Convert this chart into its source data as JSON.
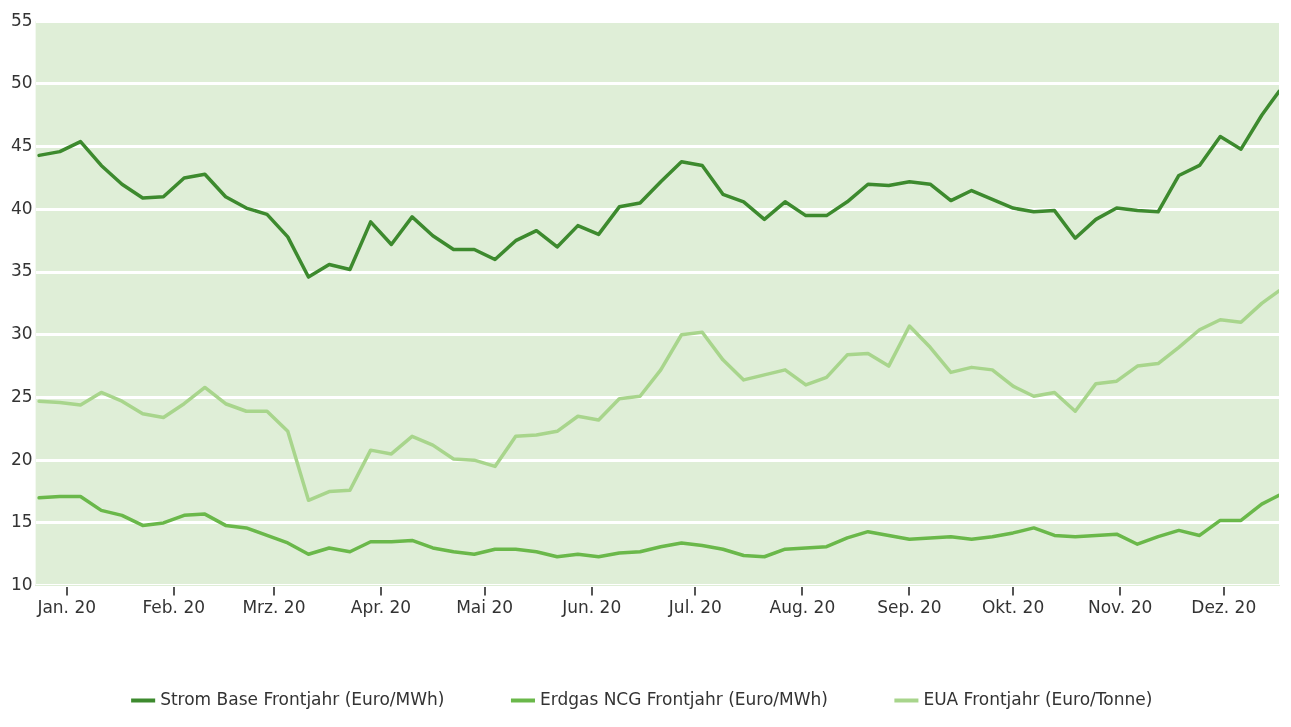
{
  "chart_data": {
    "type": "line",
    "x": [
      "2019-12-24",
      "2019-12-30",
      "2020-01-05",
      "2020-01-11",
      "2020-01-17",
      "2020-01-23",
      "2020-01-29",
      "2020-02-04",
      "2020-02-10",
      "2020-02-16",
      "2020-02-22",
      "2020-02-28",
      "2020-03-05",
      "2020-03-11",
      "2020-03-17",
      "2020-03-23",
      "2020-03-29",
      "2020-04-04",
      "2020-04-10",
      "2020-04-16",
      "2020-04-22",
      "2020-04-28",
      "2020-05-04",
      "2020-05-10",
      "2020-05-16",
      "2020-05-22",
      "2020-05-28",
      "2020-06-03",
      "2020-06-09",
      "2020-06-15",
      "2020-06-21",
      "2020-06-27",
      "2020-07-03",
      "2020-07-09",
      "2020-07-15",
      "2020-07-21",
      "2020-07-27",
      "2020-08-02",
      "2020-08-08",
      "2020-08-14",
      "2020-08-20",
      "2020-08-26",
      "2020-09-01",
      "2020-09-07",
      "2020-09-13",
      "2020-09-19",
      "2020-09-25",
      "2020-10-01",
      "2020-10-07",
      "2020-10-13",
      "2020-10-19",
      "2020-10-25",
      "2020-10-31",
      "2020-11-06",
      "2020-11-12",
      "2020-11-18",
      "2020-11-24",
      "2020-11-30",
      "2020-12-06",
      "2020-12-12",
      "2020-12-17"
    ],
    "series": [
      {
        "name": "Strom Base Frontjahr (Euro/MWh)",
        "color": "#3d8a2e",
        "values": [
          44.3,
          44.6,
          45.4,
          43.5,
          42.0,
          40.9,
          41.0,
          42.5,
          42.8,
          41.0,
          40.1,
          39.6,
          37.8,
          34.6,
          35.6,
          35.2,
          39.0,
          37.2,
          39.4,
          37.9,
          36.8,
          36.8,
          36.0,
          37.5,
          38.3,
          37.0,
          38.7,
          38.0,
          40.2,
          40.5,
          42.2,
          43.8,
          43.5,
          41.2,
          40.6,
          39.2,
          40.6,
          39.5,
          39.5,
          40.6,
          42.0,
          41.9,
          42.2,
          42.0,
          40.7,
          41.5,
          40.8,
          40.1,
          39.8,
          39.9,
          37.7,
          39.2,
          40.1,
          39.9,
          39.8,
          42.7,
          43.5,
          45.8,
          44.8,
          47.5,
          49.4
        ]
      },
      {
        "name": "Erdgas NCG Frontjahr (Euro/MWh)",
        "color": "#6ab84a",
        "values": [
          17.0,
          17.1,
          17.1,
          16.0,
          15.6,
          14.8,
          15.0,
          15.6,
          15.7,
          14.8,
          14.6,
          14.0,
          13.4,
          12.5,
          13.0,
          12.7,
          13.5,
          13.5,
          13.6,
          13.0,
          12.7,
          12.5,
          12.9,
          12.9,
          12.7,
          12.3,
          12.5,
          12.3,
          12.6,
          12.7,
          13.1,
          13.4,
          13.2,
          12.9,
          12.4,
          12.3,
          12.9,
          13.0,
          13.1,
          13.8,
          14.3,
          14.0,
          13.7,
          13.8,
          13.9,
          13.7,
          13.9,
          14.2,
          14.6,
          14.0,
          13.9,
          14.0,
          14.1,
          13.3,
          13.9,
          14.4,
          14.0,
          15.2,
          15.2,
          16.5,
          17.2
        ]
      },
      {
        "name": "EUA Frontjahr (Euro/Tonne)",
        "color": "#a8d58c",
        "values": [
          24.7,
          24.6,
          24.4,
          25.4,
          24.7,
          23.7,
          23.4,
          24.5,
          25.8,
          24.5,
          23.9,
          23.9,
          22.3,
          16.8,
          17.5,
          17.6,
          20.8,
          20.5,
          21.9,
          21.2,
          20.1,
          20.0,
          19.5,
          21.9,
          22.0,
          22.3,
          23.5,
          23.2,
          24.9,
          25.1,
          27.2,
          30.0,
          30.2,
          28.0,
          26.4,
          26.8,
          27.2,
          26.0,
          26.6,
          28.4,
          28.5,
          27.5,
          30.7,
          29.0,
          27.0,
          27.4,
          27.2,
          25.9,
          25.1,
          25.4,
          23.9,
          26.1,
          26.3,
          27.5,
          27.7,
          29.0,
          30.4,
          31.2,
          31.0,
          32.5,
          33.5
        ]
      }
    ],
    "xlim": [
      "2019-12-23",
      "2020-12-17"
    ],
    "xticks": [
      {
        "value": "2020-01-01",
        "label": "Jan. 20"
      },
      {
        "value": "2020-02-01",
        "label": "Feb. 20"
      },
      {
        "value": "2020-03-01",
        "label": "Mrz. 20"
      },
      {
        "value": "2020-04-01",
        "label": "Apr. 20"
      },
      {
        "value": "2020-05-01",
        "label": "Mai 20"
      },
      {
        "value": "2020-06-01",
        "label": "Jun. 20"
      },
      {
        "value": "2020-07-01",
        "label": "Jul. 20"
      },
      {
        "value": "2020-08-01",
        "label": "Aug. 20"
      },
      {
        "value": "2020-09-01",
        "label": "Sep. 20"
      },
      {
        "value": "2020-10-01",
        "label": "Okt. 20"
      },
      {
        "value": "2020-11-01",
        "label": "Nov. 20"
      },
      {
        "value": "2020-12-01",
        "label": "Dez. 20"
      }
    ],
    "ylim": [
      10,
      55
    ],
    "yticks": [
      10,
      15,
      20,
      25,
      30,
      35,
      40,
      45,
      50,
      55
    ],
    "grid": "y",
    "legend": "bottom",
    "marker": "none",
    "line_style": "solid"
  }
}
